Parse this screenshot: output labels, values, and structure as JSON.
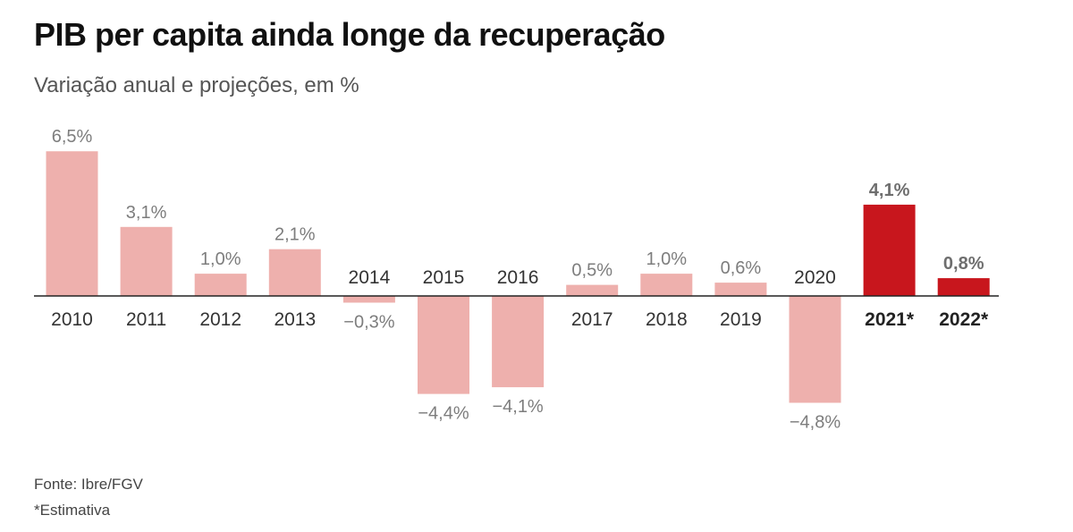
{
  "title": "PIB per capita ainda longe da recuperação",
  "subtitle": "Variação anual e projeções, em %",
  "chart_data": {
    "type": "bar",
    "categories": [
      "2010",
      "2011",
      "2012",
      "2013",
      "2014",
      "2015",
      "2016",
      "2017",
      "2018",
      "2019",
      "2020",
      "2021*",
      "2022*"
    ],
    "values": [
      6.5,
      3.1,
      1.0,
      2.1,
      -0.3,
      -4.4,
      -4.1,
      0.5,
      1.0,
      0.6,
      -4.8,
      4.1,
      0.8
    ],
    "value_labels": [
      "6,5%",
      "3,1%",
      "1,0%",
      "2,1%",
      "−0,3%",
      "−4,4%",
      "−4,1%",
      "0,5%",
      "1,0%",
      "0,6%",
      "−4,8%",
      "4,1%",
      "0,8%"
    ],
    "estimate": [
      false,
      false,
      false,
      false,
      false,
      false,
      false,
      false,
      false,
      false,
      false,
      true,
      true
    ],
    "title": "PIB per capita ainda longe da recuperação",
    "subtitle": "Variação anual e projeções, em %",
    "xlabel": "",
    "ylabel": "",
    "ylim": [
      -5,
      7
    ],
    "grid": false,
    "colors": {
      "historical": "#eeb0ad",
      "estimate": "#c8161d",
      "axis": "#222222",
      "label": "#7d7d7d",
      "category": "#333333",
      "estimate_label": "#6e6e6e"
    }
  },
  "footer": {
    "source": "Fonte: Ibre/FGV",
    "note": "*Estimativa"
  }
}
